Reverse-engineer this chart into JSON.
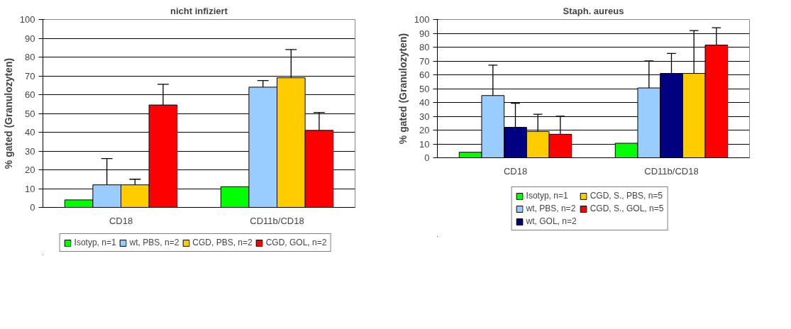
{
  "chart_data": [
    {
      "type": "bar",
      "title": "nicht infiziert",
      "ylabel": "% gated (Granulozyten)",
      "categories": [
        "CD18",
        "CD11b/CD18"
      ],
      "ylim": [
        0,
        100
      ],
      "yticks": [
        0,
        10,
        20,
        30,
        40,
        50,
        60,
        70,
        80,
        90,
        100
      ],
      "grid": "y",
      "legend": "bottom",
      "series": [
        {
          "name": "Isotyp, n=1",
          "color": "#00ff00",
          "values": [
            4,
            11
          ]
        },
        {
          "name": "wt, PBS, n=2",
          "color": "#99ccff",
          "values": [
            12,
            64
          ],
          "errors": [
            [
              12,
              26
            ],
            [
              64,
              67.5
            ]
          ]
        },
        {
          "name": "CGD, PBS, n=2",
          "color": "#ffcc00",
          "values": [
            12,
            69
          ],
          "errors": [
            [
              12,
              15
            ],
            [
              69,
              84
            ]
          ]
        },
        {
          "name": "CGD, GOL, n=2",
          "color": "#ff0000",
          "values": [
            54.5,
            41
          ],
          "errors": [
            [
              54.5,
              65.5
            ],
            [
              41,
              50.5
            ]
          ]
        }
      ]
    },
    {
      "type": "bar",
      "title": "Staph. aureus",
      "ylabel": "% gated (Granulozyten)",
      "categories": [
        "CD18",
        "CD11b/CD18"
      ],
      "ylim": [
        0,
        100
      ],
      "yticks": [
        0,
        10,
        20,
        30,
        40,
        50,
        60,
        70,
        80,
        90,
        100
      ],
      "grid": "y",
      "legend": "bottom",
      "series": [
        {
          "name": "Isotyp, n=1",
          "color": "#00ff00",
          "values": [
            4,
            10.5
          ]
        },
        {
          "name": "wt, PBS, n=2",
          "color": "#99ccff",
          "values": [
            45,
            50.5
          ],
          "errors": [
            [
              45,
              67
            ],
            [
              50.5,
              70
            ]
          ]
        },
        {
          "name": "wt, GOL, n=2",
          "color": "#000080",
          "values": [
            22,
            61
          ],
          "errors": [
            [
              22,
              39.5
            ],
            [
              61,
              75.5
            ]
          ]
        },
        {
          "name": "CGD, S., PBS, n=5",
          "color": "#ffcc00",
          "values": [
            19,
            61
          ],
          "errors": [
            [
              19,
              31.5
            ],
            [
              61,
              92
            ]
          ]
        },
        {
          "name": "CGD, S., GOL, n=5",
          "color": "#ff0000",
          "values": [
            17,
            81.5
          ],
          "errors": [
            [
              17,
              30
            ],
            [
              81.5,
              94
            ]
          ]
        }
      ]
    }
  ]
}
